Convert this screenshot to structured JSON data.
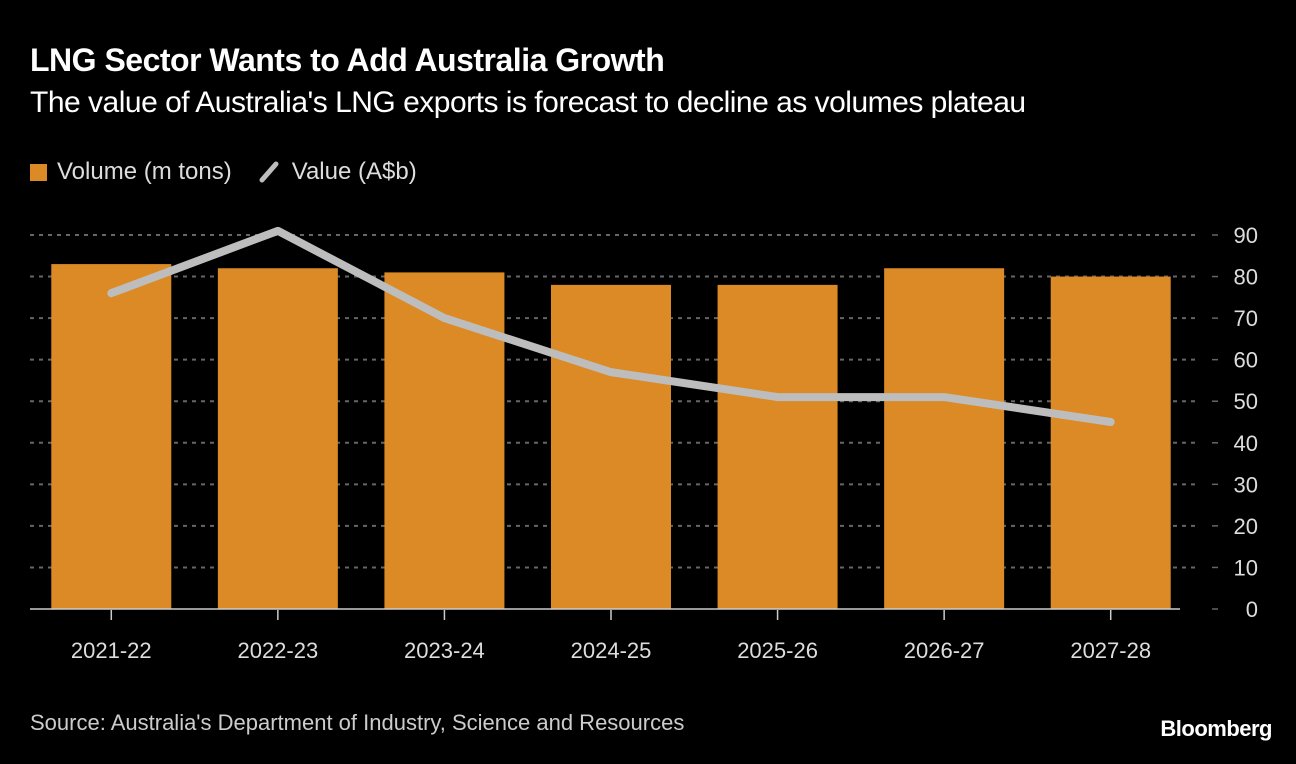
{
  "header": {
    "title": "LNG Sector Wants to Add Australia Growth",
    "subtitle": "The value of Australia's LNG exports is forecast to decline as volumes plateau"
  },
  "legend": [
    {
      "label": "Volume (m tons)",
      "color": "#db8a26",
      "kind": "bar"
    },
    {
      "label": "Value (A$b)",
      "color": "#bdbdbd",
      "kind": "line"
    }
  ],
  "footer": {
    "source": "Source: Australia's Department of Industry, Science and Resources",
    "brand": "Bloomberg"
  },
  "chart_data": {
    "type": "bar",
    "title": "LNG Sector Wants to Add Australia Growth",
    "subtitle": "The value of Australia's LNG exports is forecast to decline as volumes plateau",
    "xlabel": "",
    "ylabel": "",
    "categories": [
      "2021-22",
      "2022-23",
      "2023-24",
      "2024-25",
      "2025-26",
      "2026-27",
      "2027-28"
    ],
    "series": [
      {
        "name": "Volume (m tons)",
        "type": "bar",
        "color": "#db8a26",
        "values": [
          83,
          82,
          81,
          78,
          78,
          82,
          80
        ]
      },
      {
        "name": "Value (A$b)",
        "type": "line",
        "color": "#bdbdbd",
        "values": [
          76,
          91,
          70,
          57,
          51,
          51,
          45
        ]
      }
    ],
    "ylim": [
      0,
      90
    ],
    "yticks": [
      0,
      10,
      20,
      30,
      40,
      50,
      60,
      70,
      80,
      90
    ],
    "y_axis_side": "right",
    "grid": true,
    "legend_position": "top-left"
  }
}
